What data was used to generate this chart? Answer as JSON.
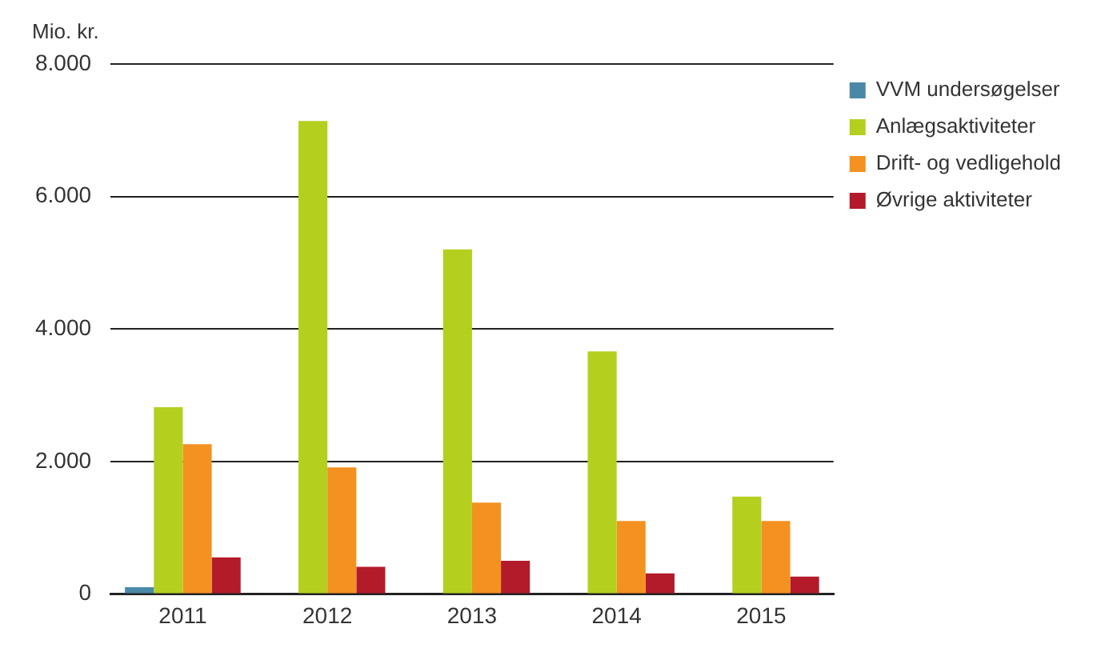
{
  "chart_data": {
    "type": "bar",
    "ylabel": "Mio. kr.",
    "categories": [
      "2011",
      "2012",
      "2013",
      "2014",
      "2015"
    ],
    "series": [
      {
        "name": "VVM undersøgelser",
        "color": "#4a88a8",
        "values": [
          100,
          0,
          0,
          0,
          0
        ]
      },
      {
        "name": "Anlægsaktiviteter",
        "color": "#b5cf1e",
        "values": [
          2820,
          7140,
          5200,
          3660,
          1470
        ]
      },
      {
        "name": "Drift- og vedligehold",
        "color": "#f39220",
        "values": [
          2260,
          1910,
          1380,
          1100,
          1100
        ]
      },
      {
        "name": "Øvrige aktiviteter",
        "color": "#b31b2a",
        "values": [
          550,
          410,
          500,
          310,
          260
        ]
      }
    ],
    "ylim": [
      0,
      8000
    ],
    "yticks": [
      {
        "value": 0,
        "label": "0"
      },
      {
        "value": 2000,
        "label": "2.000"
      },
      {
        "value": 4000,
        "label": "4.000"
      },
      {
        "value": 6000,
        "label": "6.000"
      },
      {
        "value": 8000,
        "label": "8.000"
      }
    ],
    "grid": "y",
    "legend": "top right"
  }
}
